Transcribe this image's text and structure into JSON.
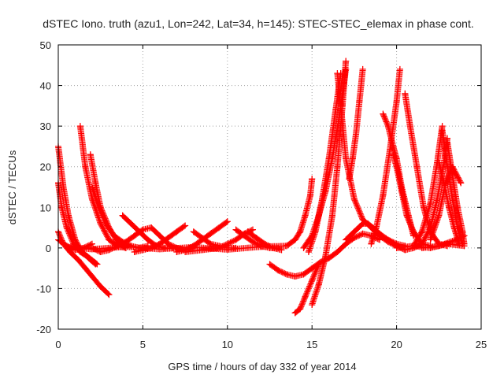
{
  "chart_data": {
    "type": "scatter",
    "title": "dSTEC Iono. truth (azu1, Lon=242, Lat=34, h=145): STEC-STEC_elemax in phase cont.",
    "xlabel": "GPS time / hours of day 332 of year 2014",
    "ylabel": "dSTEC  / TECUs",
    "xlim": [
      0,
      25
    ],
    "ylim": [
      -20,
      50
    ],
    "xticks": [
      0,
      5,
      10,
      15,
      20,
      25
    ],
    "yticks": [
      -20,
      -10,
      0,
      10,
      20,
      30,
      40,
      50
    ],
    "grid": true,
    "marker": "+",
    "color": "#ff0000",
    "series": [
      {
        "x": [
          0.0,
          0.3,
          0.6,
          1.0,
          1.4,
          1.8,
          2.2
        ],
        "y": [
          25,
          15,
          8,
          2,
          -1,
          -2.5,
          -4
        ]
      },
      {
        "x": [
          0.0,
          0.2,
          0.5,
          0.9,
          1.3,
          1.7,
          2.0,
          2.3
        ],
        "y": [
          16,
          10,
          5,
          1,
          -1,
          -2,
          -3,
          -4
        ]
      },
      {
        "x": [
          0.0,
          0.3,
          0.7,
          1.2,
          1.6,
          2.0,
          2.5,
          3.0
        ],
        "y": [
          4,
          1,
          -1,
          -3,
          -5,
          -7,
          -9.5,
          -11.5
        ]
      },
      {
        "x": [
          0.0,
          0.5,
          1.0,
          1.5,
          2.0
        ],
        "y": [
          2,
          0.5,
          -0.5,
          0,
          1
        ]
      },
      {
        "x": [
          1.3,
          1.6,
          2.0,
          2.5,
          3.0,
          3.5,
          4.0
        ],
        "y": [
          30,
          20,
          12,
          6,
          2,
          0.5,
          0
        ]
      },
      {
        "x": [
          1.9,
          2.2,
          2.5,
          3.0,
          3.5,
          4.0
        ],
        "y": [
          23,
          16,
          10,
          5,
          1.5,
          0
        ]
      },
      {
        "x": [
          2.0,
          2.4,
          2.8,
          3.3,
          3.8,
          4.3,
          4.8,
          5.3
        ],
        "y": [
          15,
          10,
          6,
          3,
          1.5,
          0.5,
          0,
          0.5
        ]
      },
      {
        "x": [
          2.0,
          2.5,
          3.0,
          3.5,
          4.0,
          4.5,
          5.0,
          5.5
        ],
        "y": [
          0,
          -1,
          -0.5,
          0.5,
          1.5,
          3,
          4.5,
          5
        ]
      },
      {
        "x": [
          3.8,
          4.3,
          4.8,
          5.3,
          5.8,
          6.3,
          6.8
        ],
        "y": [
          8,
          6,
          4,
          2,
          0.5,
          0,
          0
        ]
      },
      {
        "x": [
          4.5,
          5.0,
          5.5,
          6.0,
          6.5,
          7.0,
          7.5
        ],
        "y": [
          -1,
          -0.5,
          0,
          1,
          2.5,
          4,
          5.5
        ]
      },
      {
        "x": [
          5.5,
          6.0,
          6.5,
          7.0,
          7.5,
          8.0
        ],
        "y": [
          5,
          3,
          1,
          0,
          -0.5,
          0
        ]
      },
      {
        "x": [
          7.0,
          7.5,
          8.0,
          8.5,
          9.0,
          9.5,
          10.0
        ],
        "y": [
          -1,
          -0.5,
          0.5,
          2,
          3.5,
          5,
          6.5
        ]
      },
      {
        "x": [
          8.0,
          8.5,
          9.0,
          9.5,
          10.0,
          10.5
        ],
        "y": [
          4,
          2.5,
          1,
          0.5,
          0,
          0
        ]
      },
      {
        "x": [
          7.5,
          8.5,
          9.5,
          10.5,
          11.0,
          11.5
        ],
        "y": [
          -1,
          -0.5,
          0,
          2,
          3.5,
          4.5
        ]
      },
      {
        "x": [
          10.5,
          11.0,
          11.5,
          12.0,
          12.5,
          13.0
        ],
        "y": [
          4.5,
          3,
          1.5,
          0.5,
          0,
          0
        ]
      },
      {
        "x": [
          11.2,
          11.7,
          12.2,
          12.7,
          13.2
        ],
        "y": [
          4,
          2.5,
          1,
          0,
          -0.5
        ]
      },
      {
        "x": [
          0.5,
          2.0,
          4.0,
          6.0,
          8.0,
          10.0,
          12.0,
          13.5
        ],
        "y": [
          0.2,
          -0.3,
          0.3,
          -0.3,
          0.2,
          -0.4,
          0.3,
          0.5
        ]
      },
      {
        "x": [
          12.5,
          13.0,
          13.5,
          14.0,
          14.5,
          15.0,
          15.5,
          16.0,
          16.5,
          17.0,
          17.5,
          18.0,
          18.5,
          19.0
        ],
        "y": [
          -4,
          -5.5,
          -6.5,
          -7,
          -6.5,
          -5,
          -3.5,
          -2.5,
          -1,
          1,
          2.5,
          3.5,
          3,
          2
        ]
      },
      {
        "x": [
          13.5,
          14.0,
          14.3,
          14.6,
          14.9,
          15.0
        ],
        "y": [
          0.5,
          2,
          4,
          8,
          13,
          17
        ]
      },
      {
        "x": [
          14.0,
          14.3,
          14.6,
          15.0,
          15.4
        ],
        "y": [
          -16,
          -15,
          -12,
          -8,
          -4
        ]
      },
      {
        "x": [
          15.0,
          15.4,
          15.8,
          16.2,
          16.5,
          16.8,
          17.0
        ],
        "y": [
          -14,
          -9,
          -2,
          8,
          20,
          35,
          46
        ]
      },
      {
        "x": [
          14.8,
          15.2,
          15.6,
          16.0,
          16.4,
          16.7
        ],
        "y": [
          -1,
          4,
          12,
          22,
          34,
          43
        ]
      },
      {
        "x": [
          14.5,
          15.0,
          15.4,
          15.8,
          16.2,
          16.6,
          17.0
        ],
        "y": [
          0,
          3,
          8,
          14,
          22,
          32,
          44
        ]
      },
      {
        "x": [
          16.5,
          16.7,
          17.0,
          17.5,
          18.0,
          18.5,
          19.0,
          19.5,
          20.0
        ],
        "y": [
          43,
          35,
          22,
          12,
          7,
          5,
          3,
          1.5,
          0.5
        ]
      },
      {
        "x": [
          17.2,
          17.4,
          17.6,
          17.8,
          18.0
        ],
        "y": [
          17,
          22,
          28,
          36,
          44
        ]
      },
      {
        "x": [
          17.0,
          17.5,
          18.0,
          18.3,
          18.6,
          19.0,
          19.5,
          20.0,
          20.5
        ],
        "y": [
          2,
          4,
          6,
          6,
          5,
          3.5,
          2,
          1,
          0.5
        ]
      },
      {
        "x": [
          19.2,
          19.5,
          19.8,
          20.0,
          20.3,
          20.7,
          21.0
        ],
        "y": [
          33,
          30,
          25,
          22,
          15,
          8,
          3
        ]
      },
      {
        "x": [
          18.5,
          18.8,
          19.2,
          19.6,
          20.0,
          20.2
        ],
        "y": [
          1,
          5,
          13,
          24,
          36,
          44
        ]
      },
      {
        "x": [
          19.8,
          20.0,
          20.3,
          20.6,
          21.0,
          21.5,
          22.0
        ],
        "y": [
          23,
          20,
          14,
          8,
          4,
          1,
          0.5
        ]
      },
      {
        "x": [
          20.5,
          20.8,
          21.2,
          21.6,
          22.0,
          22.5,
          23.0
        ],
        "y": [
          38,
          30,
          20,
          10,
          4,
          1,
          0.5
        ]
      },
      {
        "x": [
          19.5,
          20.0,
          20.5,
          21.0,
          21.5
        ],
        "y": [
          2,
          0.5,
          -0.5,
          0,
          1
        ]
      },
      {
        "x": [
          21.0,
          21.5,
          22.0,
          22.4,
          22.7
        ],
        "y": [
          0.5,
          4,
          11,
          21,
          30
        ]
      },
      {
        "x": [
          22.7,
          23.0,
          23.3,
          23.6,
          23.9
        ],
        "y": [
          29,
          20,
          12,
          5,
          1
        ]
      },
      {
        "x": [
          21.5,
          22.0,
          22.4,
          22.8,
          23.0
        ],
        "y": [
          1,
          5,
          12,
          21,
          27
        ]
      },
      {
        "x": [
          22.5,
          22.8,
          23.1,
          23.4,
          23.7
        ],
        "y": [
          21,
          16,
          10,
          5,
          1
        ]
      },
      {
        "x": [
          22.0,
          22.5,
          22.9,
          23.3,
          23.8
        ],
        "y": [
          2,
          8,
          16,
          20,
          16
        ]
      },
      {
        "x": [
          23.0,
          23.3,
          23.6,
          23.9,
          24.0
        ],
        "y": [
          26,
          18,
          10,
          4,
          1
        ]
      },
      {
        "x": [
          21.5,
          22.5,
          23.5,
          24.0
        ],
        "y": [
          0,
          0.5,
          2,
          3
        ]
      },
      {
        "x": [
          20.0,
          21.0,
          22.0,
          23.0,
          24.0
        ],
        "y": [
          0,
          0.5,
          0,
          1,
          0.5
        ]
      }
    ]
  }
}
